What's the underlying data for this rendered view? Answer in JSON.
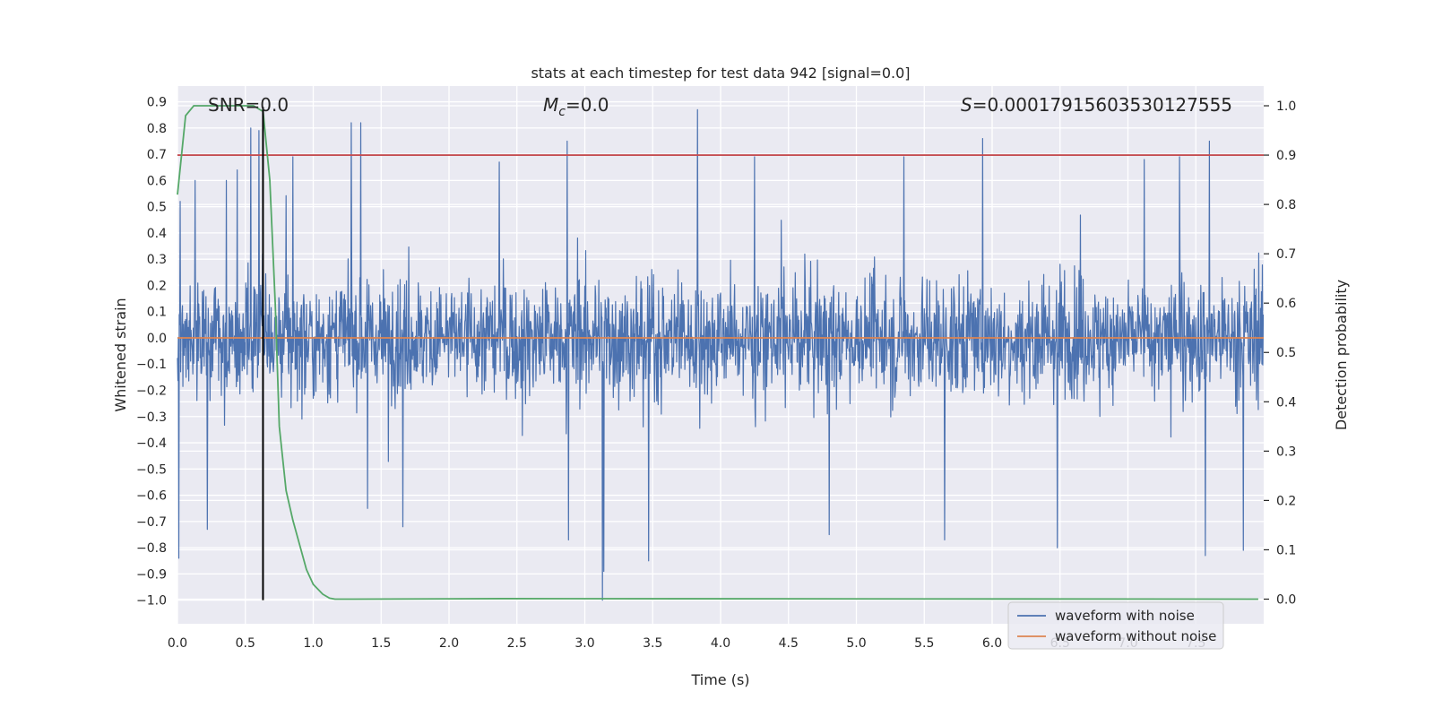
{
  "chart_data": {
    "type": "line",
    "title": "stats at each timestep for test data 942 [signal=0.0]",
    "xlabel": "Time (s)",
    "ylabel_left": "Whitened strain",
    "ylabel_right": "Detection probability",
    "xlim": [
      0.0,
      8.0
    ],
    "ylim_left": [
      -1.09,
      0.96
    ],
    "ylim_right": [
      -0.05,
      1.04
    ],
    "x_ticks": [
      0.0,
      0.5,
      1.0,
      1.5,
      2.0,
      2.5,
      3.0,
      3.5,
      4.0,
      4.5,
      5.0,
      5.5,
      6.0,
      6.5,
      7.0,
      7.5
    ],
    "x_tick_labels": [
      "0.0",
      "0.5",
      "1.0",
      "1.5",
      "2.0",
      "2.5",
      "3.0",
      "3.5",
      "4.0",
      "4.5",
      "5.0",
      "5.5",
      "6.0",
      "6.5",
      "7.0",
      "7.5"
    ],
    "y_left_ticks": [
      0.9,
      0.8,
      0.7,
      0.6,
      0.5,
      0.4,
      0.3,
      0.2,
      0.1,
      0.0,
      -0.1,
      -0.2,
      -0.3,
      -0.4,
      -0.5,
      -0.6,
      -0.7,
      -0.8,
      -0.9,
      -1.0
    ],
    "y_left_tick_labels": [
      "0.9",
      "0.8",
      "0.7",
      "0.6",
      "0.5",
      "0.4",
      "0.3",
      "0.2",
      "0.1",
      "0.0",
      "−0.1",
      "−0.2",
      "−0.3",
      "−0.4",
      "−0.5",
      "−0.6",
      "−0.7",
      "−0.8",
      "−0.9",
      "−1.0"
    ],
    "y_right_ticks": [
      1.0,
      0.9,
      0.8,
      0.7,
      0.6,
      0.5,
      0.4,
      0.3,
      0.2,
      0.1,
      0.0
    ],
    "y_right_tick_labels": [
      "1.0",
      "0.9",
      "0.8",
      "0.7",
      "0.6",
      "0.5",
      "0.4",
      "0.3",
      "0.2",
      "0.1",
      "0.0"
    ],
    "annotations": {
      "snr": "SNR=0.0",
      "mc_symbol": "M",
      "mc_subscript": "c",
      "mc_value": "=0.0",
      "s_symbol": "S",
      "s_value": "=0.00017915603530127555"
    },
    "series": [
      {
        "name": "waveform with noise",
        "axis": "left",
        "color": "#4c72b0",
        "kind": "noise",
        "envelope": {
          "typical_low": -0.33,
          "typical_high": 0.42
        },
        "spikes": [
          {
            "x": 0.01,
            "y": -0.84
          },
          {
            "x": 0.02,
            "y": 0.52
          },
          {
            "x": 0.13,
            "y": 0.6
          },
          {
            "x": 0.22,
            "y": -0.73
          },
          {
            "x": 0.36,
            "y": 0.6
          },
          {
            "x": 0.44,
            "y": 0.64
          },
          {
            "x": 0.54,
            "y": 0.8
          },
          {
            "x": 0.6,
            "y": 0.79
          },
          {
            "x": 0.85,
            "y": 0.69
          },
          {
            "x": 1.28,
            "y": 0.82
          },
          {
            "x": 1.35,
            "y": 0.82
          },
          {
            "x": 1.4,
            "y": -0.65
          },
          {
            "x": 1.66,
            "y": -0.72
          },
          {
            "x": 2.37,
            "y": 0.67
          },
          {
            "x": 2.87,
            "y": 0.75
          },
          {
            "x": 2.88,
            "y": -0.77
          },
          {
            "x": 3.13,
            "y": -1.0
          },
          {
            "x": 3.14,
            "y": -0.89
          },
          {
            "x": 3.47,
            "y": -0.85
          },
          {
            "x": 3.83,
            "y": 0.87
          },
          {
            "x": 4.25,
            "y": 0.69
          },
          {
            "x": 4.8,
            "y": -0.75
          },
          {
            "x": 5.35,
            "y": 0.69
          },
          {
            "x": 5.65,
            "y": -0.77
          },
          {
            "x": 5.93,
            "y": 0.76
          },
          {
            "x": 6.48,
            "y": -0.8
          },
          {
            "x": 7.12,
            "y": 0.68
          },
          {
            "x": 7.38,
            "y": 0.69
          },
          {
            "x": 7.6,
            "y": 0.75
          },
          {
            "x": 7.57,
            "y": -0.83
          },
          {
            "x": 7.85,
            "y": -0.81
          }
        ]
      },
      {
        "name": "waveform without noise",
        "axis": "left",
        "color": "#dd8452",
        "x": [
          0.0,
          8.0
        ],
        "y": [
          0.0,
          0.0
        ]
      },
      {
        "name": "detection probability",
        "axis": "right",
        "color": "#55a868",
        "x": [
          0.0,
          0.06,
          0.12,
          0.2,
          0.3,
          0.4,
          0.5,
          0.56,
          0.62,
          0.63,
          0.68,
          0.72,
          0.75,
          0.8,
          0.85,
          0.9,
          0.95,
          1.0,
          1.07,
          1.12,
          1.16,
          1.3,
          2.4,
          7.96
        ],
        "y": [
          0.82,
          0.98,
          1.0,
          1.0,
          1.0,
          1.0,
          1.0,
          1.0,
          0.99,
          0.99,
          0.85,
          0.6,
          0.35,
          0.22,
          0.16,
          0.11,
          0.06,
          0.03,
          0.01,
          0.002,
          0.0,
          0.0,
          0.001,
          0.0
        ]
      },
      {
        "name": "threshold",
        "axis": "right",
        "color": "#c44e52",
        "x": [
          0.0,
          8.0
        ],
        "y": [
          0.9,
          0.9
        ]
      },
      {
        "name": "detection time",
        "axis": "left",
        "color": "#000000",
        "x": [
          0.63,
          0.63
        ],
        "y": [
          0.88,
          -1.0
        ]
      }
    ],
    "legend": {
      "position": "lower-right",
      "entries": [
        {
          "label": "waveform with noise",
          "color": "#4c72b0"
        },
        {
          "label": "waveform without noise",
          "color": "#dd8452"
        }
      ]
    },
    "grid": true,
    "background": "#eaeaf2"
  }
}
